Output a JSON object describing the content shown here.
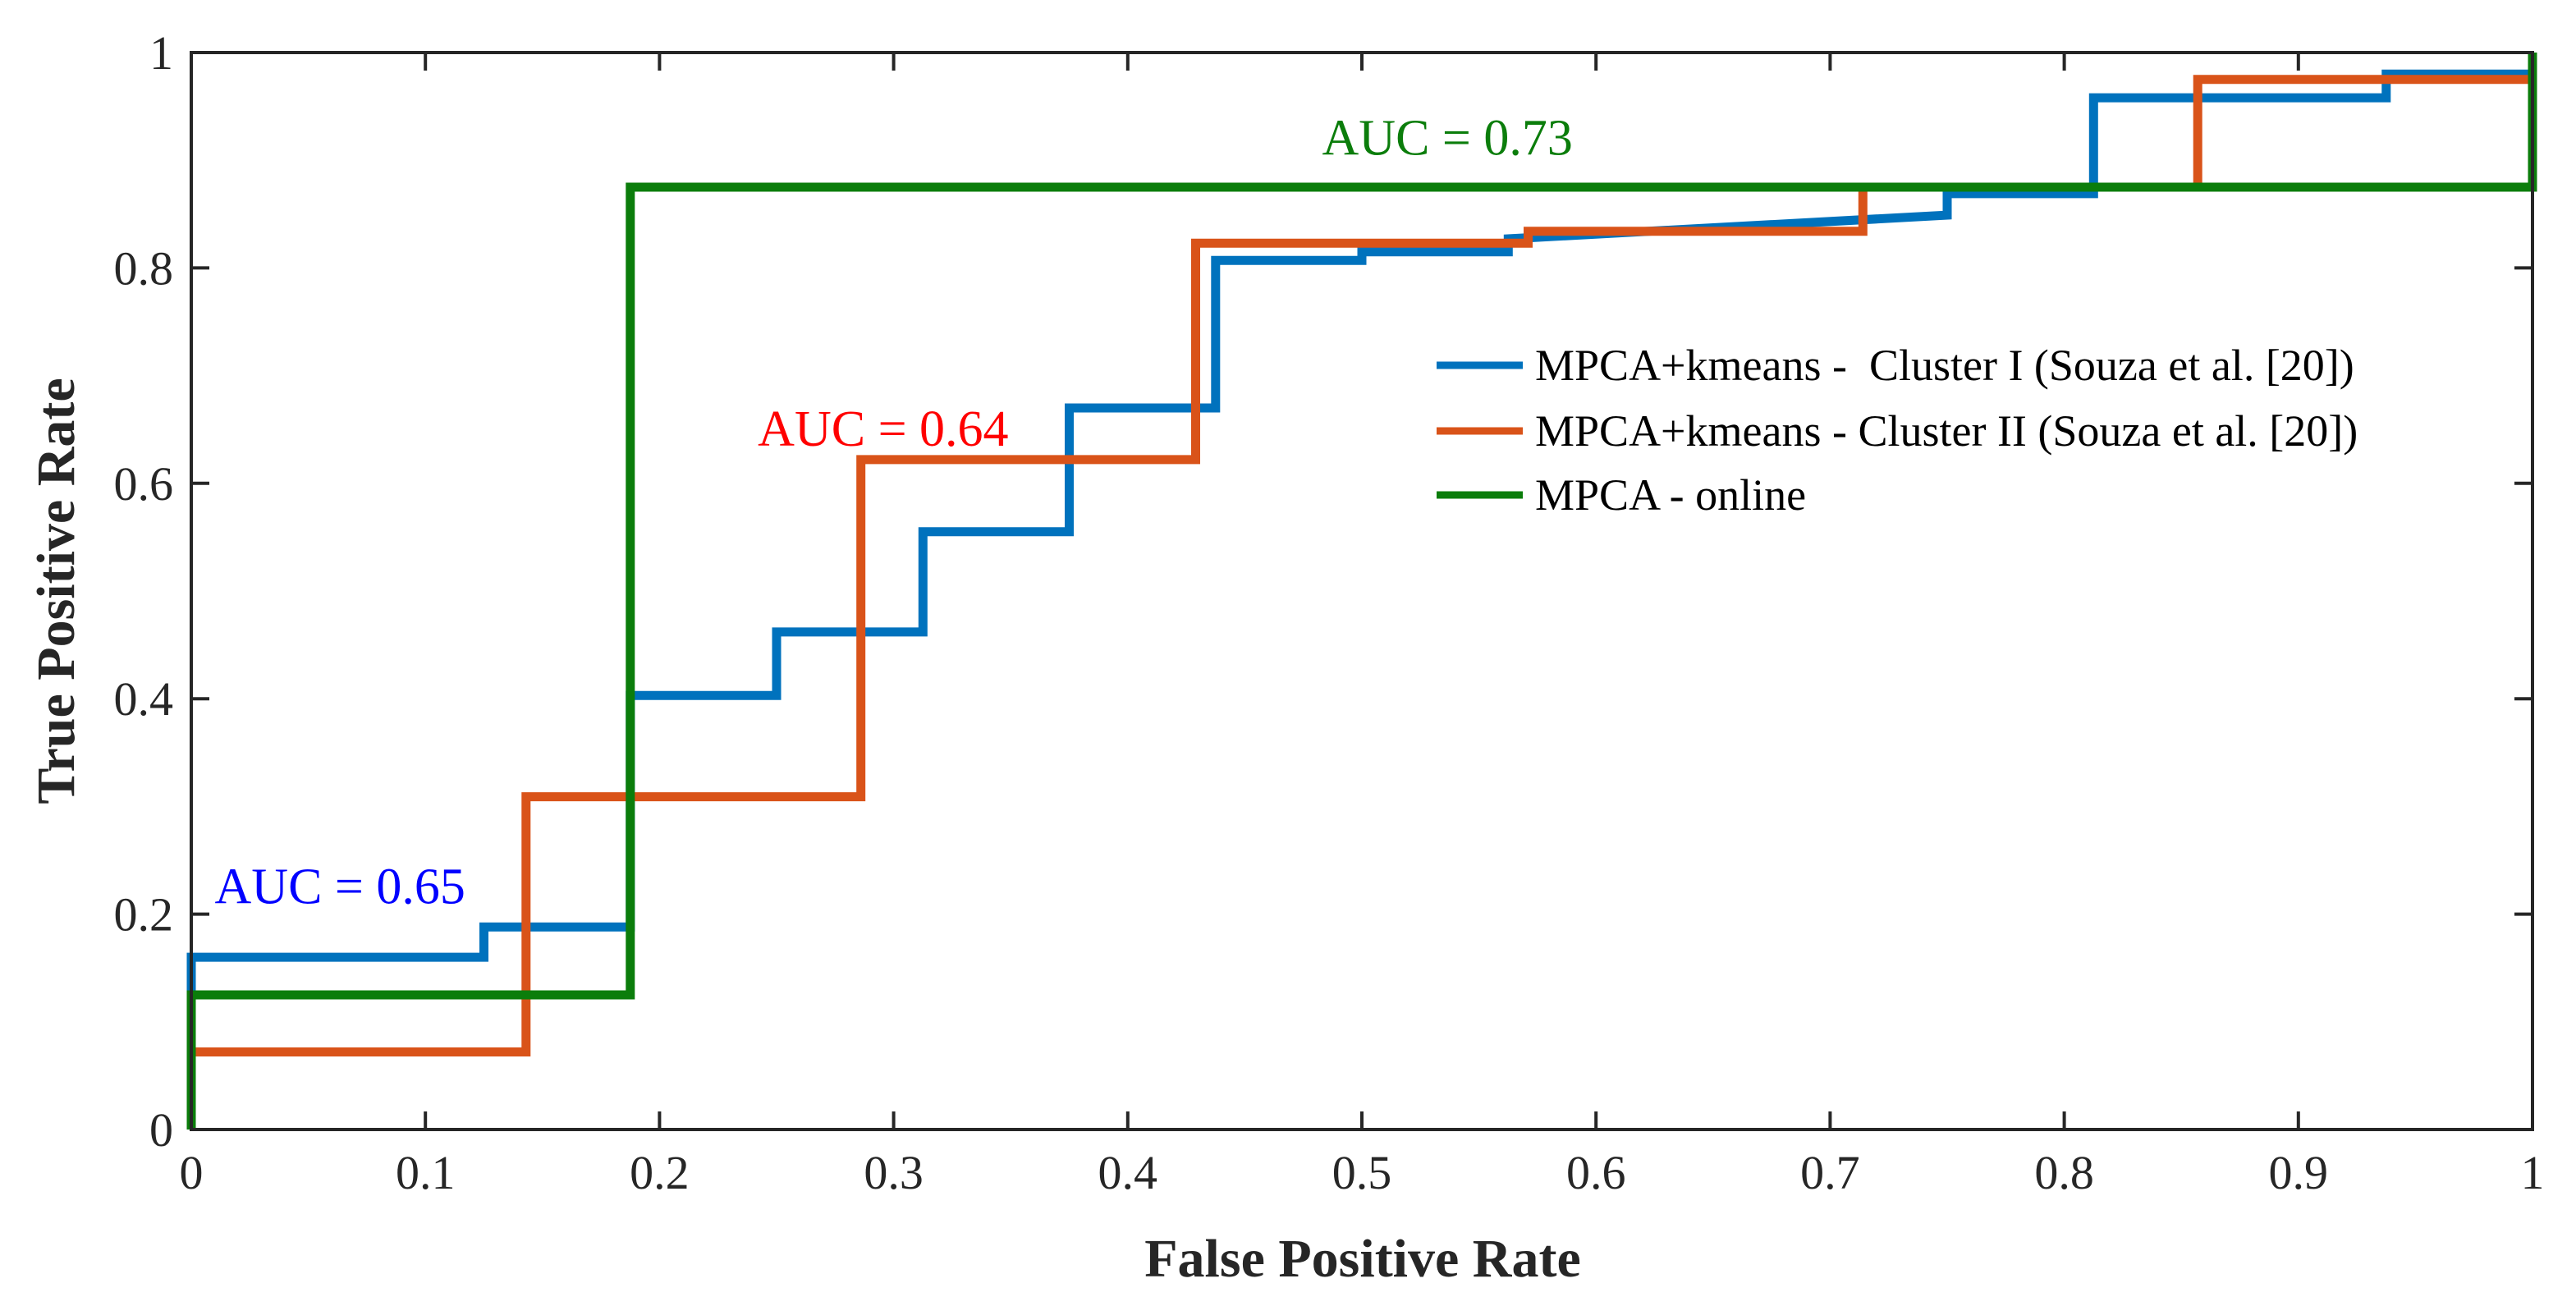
{
  "chart_data": {
    "type": "line",
    "title": "",
    "xlabel": "False Positive Rate",
    "ylabel": "True Positive Rate",
    "xlim": [
      0,
      1
    ],
    "ylim": [
      0,
      1
    ],
    "xticks": [
      0,
      0.1,
      0.2,
      0.3,
      0.4,
      0.5,
      0.6,
      0.7,
      0.8,
      0.9,
      1
    ],
    "yticks": [
      0,
      0.2,
      0.4,
      0.6,
      0.8,
      1
    ],
    "xtick_labels": [
      "0",
      "0.1",
      "0.2",
      "0.3",
      "0.4",
      "0.5",
      "0.6",
      "0.7",
      "0.8",
      "0.9",
      "1"
    ],
    "ytick_labels": [
      "0",
      "0.2",
      "0.4",
      "0.6",
      "0.8",
      "1"
    ],
    "grid": false,
    "legend_position": "right",
    "series": [
      {
        "name": "MPCA+kmeans -  Cluster I (Souza et al. [20])",
        "color": "#0072BD",
        "x": [
          0,
          0,
          0.125,
          0.125,
          0.1875,
          0.1875,
          0.25,
          0.25,
          0.3125,
          0.3125,
          0.375,
          0.375,
          0.4375,
          0.4375,
          0.5,
          0.5,
          0.5625,
          0.5625,
          0.75,
          0.75,
          0.8125,
          0.8125,
          0.9375,
          0.9375,
          1,
          1
        ],
        "y": [
          0,
          0.16,
          0.16,
          0.188,
          0.188,
          0.403,
          0.403,
          0.462,
          0.462,
          0.555,
          0.555,
          0.67,
          0.67,
          0.807,
          0.807,
          0.815,
          0.815,
          0.827,
          0.849,
          0.869,
          0.869,
          0.958,
          0.958,
          0.98,
          0.98,
          1
        ]
      },
      {
        "name": "MPCA+kmeans - Cluster II (Souza et al. [20])",
        "color": "#D95319",
        "x": [
          0,
          0,
          0.143,
          0.143,
          0.286,
          0.286,
          0.429,
          0.429,
          0.5,
          0.571,
          0.571,
          0.714,
          0.714,
          0.857,
          0.857,
          1,
          1
        ],
        "y": [
          0,
          0.072,
          0.072,
          0.309,
          0.309,
          0.622,
          0.622,
          0.823,
          0.823,
          0.823,
          0.834,
          0.834,
          0.875,
          0.875,
          0.975,
          0.975,
          1
        ]
      },
      {
        "name": "MPCA - online",
        "color": "#0B7D0B",
        "x": [
          0,
          0,
          0.1875,
          0.1875,
          1,
          1
        ],
        "y": [
          0,
          0.125,
          0.125,
          0.875,
          0.875,
          1
        ]
      }
    ],
    "annotations": [
      {
        "text": "AUC = 0.65",
        "x": 0.01,
        "y": 0.21,
        "color": "#0000FF"
      },
      {
        "text": "AUC = 0.64",
        "x": 0.242,
        "y": 0.635,
        "color": "#FF0000"
      },
      {
        "text": "AUC = 0.73",
        "x": 0.483,
        "y": 0.905,
        "color": "#0B7D0B"
      }
    ]
  }
}
